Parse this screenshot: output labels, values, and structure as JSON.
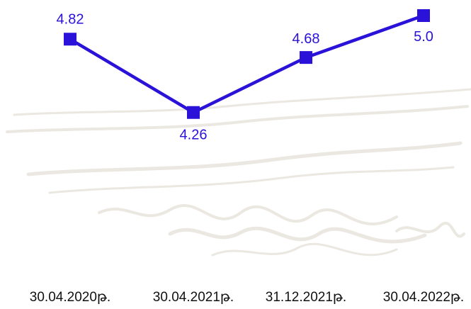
{
  "chart_data": {
    "type": "line",
    "title": "",
    "xlabel": "",
    "ylabel": "",
    "categories": [
      "30.04.2020թ.",
      "30.04.2021թ.",
      "31.12.2021թ.",
      "30.04.2022թ."
    ],
    "series": [
      {
        "values": [
          4.82,
          4.26,
          4.68,
          5.0
        ]
      }
    ],
    "data_labels": [
      "4.82",
      "4.26",
      "4.68",
      "5.0"
    ],
    "ylim": [
      2.9,
      5.0
    ],
    "grid": false,
    "legend": "none",
    "colors": {
      "series": "#2a12d8",
      "label": "#2a12d8",
      "background": "#ffffff",
      "sketch": "#ebe8e2"
    }
  }
}
